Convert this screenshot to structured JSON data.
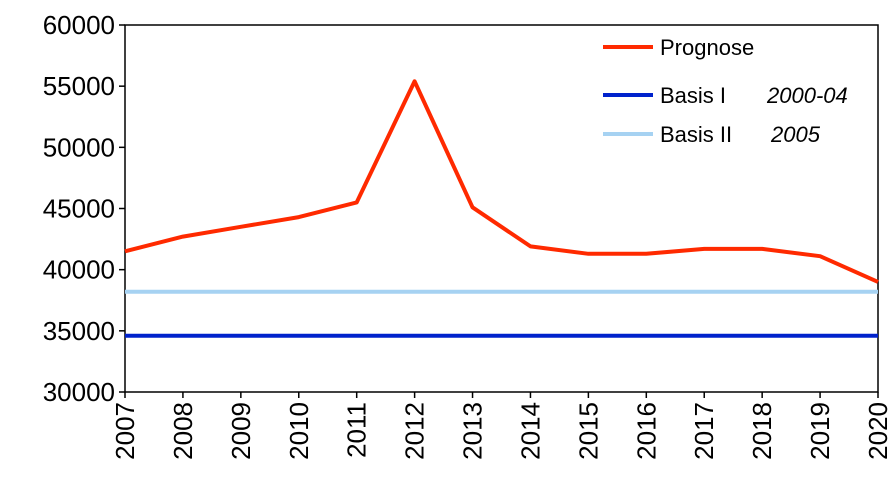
{
  "chart_data": {
    "type": "line",
    "x": [
      "2007",
      "2008",
      "2009",
      "2010",
      "2011",
      "2012",
      "2013",
      "2014",
      "2015",
      "2016",
      "2017",
      "2018",
      "2019",
      "2020"
    ],
    "ylim": [
      30000,
      60000
    ],
    "yticks": [
      "30000",
      "35000",
      "40000",
      "45000",
      "50000",
      "55000",
      "60000"
    ],
    "grid": false,
    "legend_position": "top-right",
    "series": [
      {
        "name": "Prognose",
        "color": "#ff2a00",
        "values": [
          41500,
          42700,
          43500,
          44300,
          45500,
          55400,
          45100,
          41900,
          41300,
          41300,
          41700,
          41700,
          41100,
          39000
        ]
      },
      {
        "name": "Basis I",
        "note": "2000-04",
        "color": "#0022cc",
        "values": [
          34600,
          34600,
          34600,
          34600,
          34600,
          34600,
          34600,
          34600,
          34600,
          34600,
          34600,
          34600,
          34600,
          34600
        ]
      },
      {
        "name": "Basis II",
        "note": "2005",
        "color": "#a6d2f2",
        "values": [
          38200,
          38200,
          38200,
          38200,
          38200,
          38200,
          38200,
          38200,
          38200,
          38200,
          38200,
          38200,
          38200,
          38200
        ]
      }
    ]
  }
}
